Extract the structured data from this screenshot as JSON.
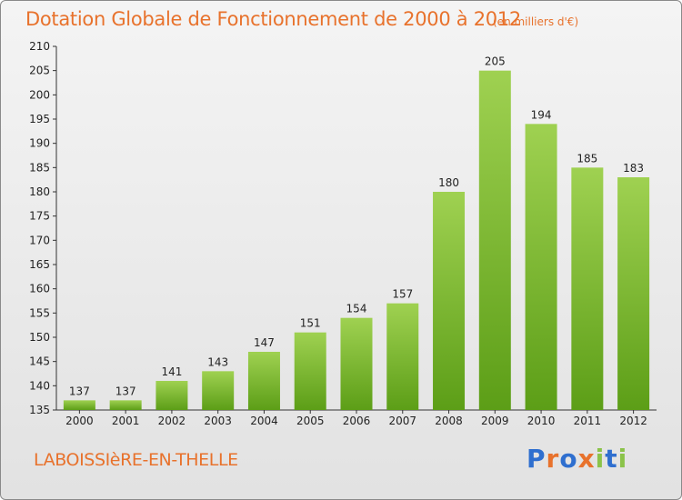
{
  "header": {
    "title": "Dotation Globale de Fonctionnement de 2000 à 2012",
    "unit": "(en milliers d'€)"
  },
  "footer": {
    "commune": "LABOISSIèRE-EN-THELLE",
    "logo_letters": [
      "P",
      "r",
      "o",
      "x",
      "i",
      "t",
      "i"
    ]
  },
  "colors": {
    "title": "#e8722c",
    "bar_light": "#9fd151",
    "bar_dark": "#5c9e17",
    "axis": "#333333"
  },
  "chart_data": {
    "type": "bar",
    "title": "Dotation Globale de Fonctionnement de 2000 à 2012",
    "xlabel": "",
    "ylabel": "",
    "categories": [
      "2000",
      "2001",
      "2002",
      "2003",
      "2004",
      "2005",
      "2006",
      "2007",
      "2008",
      "2009",
      "2010",
      "2011",
      "2012"
    ],
    "values": [
      137,
      137,
      141,
      143,
      147,
      151,
      154,
      157,
      180,
      205,
      194,
      185,
      183
    ],
    "ylim": [
      135,
      210
    ],
    "yticks": [
      135,
      140,
      145,
      150,
      155,
      160,
      165,
      170,
      175,
      180,
      185,
      190,
      195,
      200,
      205,
      210
    ],
    "grid": false,
    "data_labels": true
  }
}
